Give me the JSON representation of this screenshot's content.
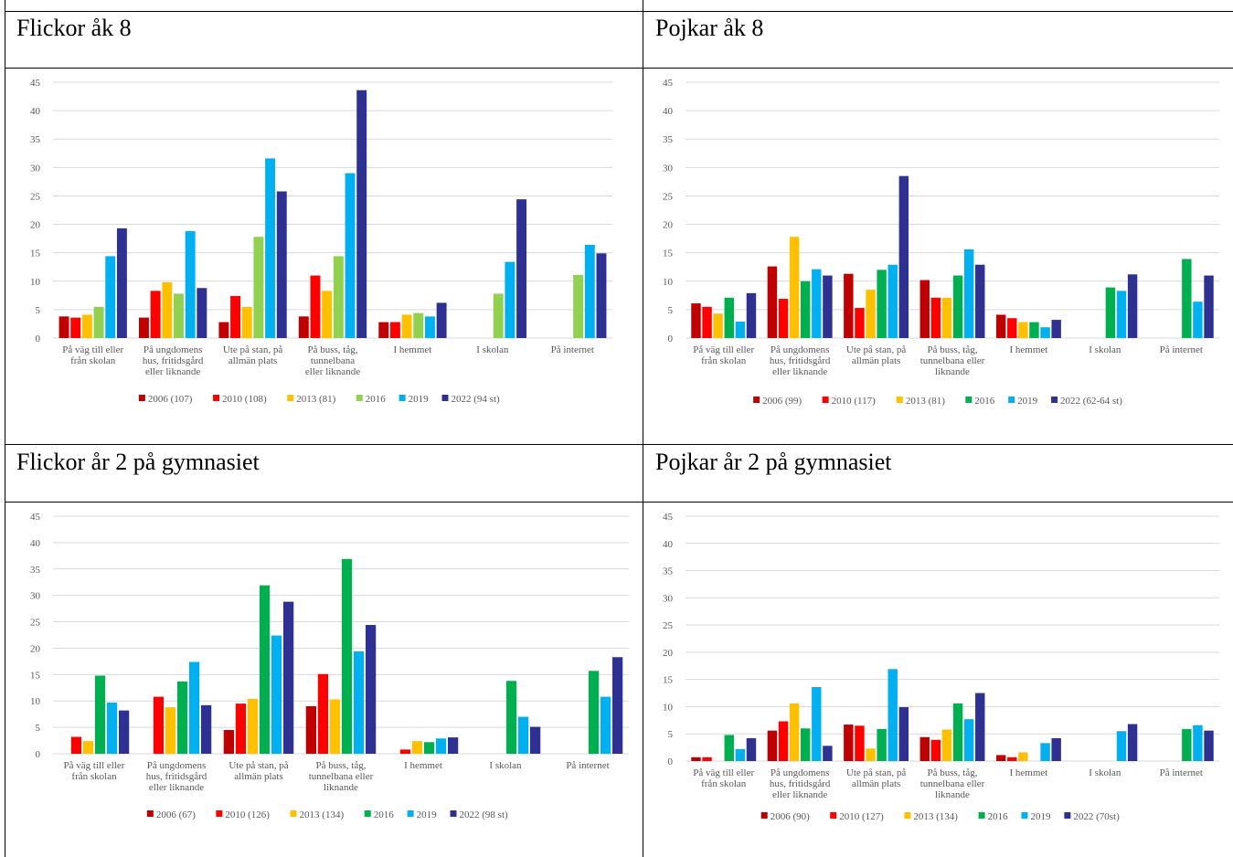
{
  "colors": {
    "2006": "#c00000",
    "2010": "#ff0000",
    "2013": "#ffc000",
    "2016_light": "#92d050",
    "2016": "#00b050",
    "2019": "#00b0f0",
    "2022": "#2e3192",
    "grid": "#d9d9d9",
    "axis_text": "#595959"
  },
  "panels": [
    {
      "title": "Flickor åk 8"
    },
    {
      "title": "Pojkar åk 8"
    },
    {
      "title": "Flickor år 2 på gymnasiet"
    },
    {
      "title": "Pojkar år 2 på gymnasiet"
    }
  ],
  "chart_data": [
    {
      "type": "bar",
      "ylim": [
        0,
        45
      ],
      "yticks": [
        0,
        5,
        10,
        15,
        20,
        25,
        30,
        35,
        40,
        45
      ],
      "grid": true,
      "legend": "bottom",
      "categories": [
        [
          "På väg till eller",
          "från skolan"
        ],
        [
          "På ungdomens",
          "hus, fritidsgård",
          "eller liknande"
        ],
        [
          "Ute på stan, på",
          "allmän plats"
        ],
        [
          "På buss, tåg,",
          "tunnelbana",
          "eller liknande"
        ],
        [
          "I hemmet"
        ],
        [
          "I skolan"
        ],
        [
          "På internet"
        ]
      ],
      "series": [
        {
          "name": "2006 (107)",
          "color": "#c00000",
          "values": [
            3.8,
            3.6,
            2.8,
            3.8,
            2.8,
            null,
            null
          ]
        },
        {
          "name": "2010 (108)",
          "color": "#ff0000",
          "values": [
            3.6,
            8.3,
            7.4,
            11.0,
            2.8,
            null,
            null
          ]
        },
        {
          "name": "2013 (81)",
          "color": "#ffc000",
          "values": [
            4.1,
            9.8,
            5.5,
            8.3,
            4.1,
            null,
            null
          ]
        },
        {
          "name": "2016",
          "color": "#92d050",
          "values": [
            5.5,
            7.8,
            17.8,
            14.4,
            4.4,
            7.8,
            11.1
          ]
        },
        {
          "name": "2019",
          "color": "#00b0f0",
          "values": [
            14.4,
            18.8,
            31.6,
            29.0,
            3.8,
            13.4,
            16.4
          ]
        },
        {
          "name": "2022 (94 st)",
          "color": "#2e3192",
          "values": [
            19.3,
            8.8,
            25.8,
            43.6,
            6.2,
            24.4,
            14.9
          ]
        }
      ]
    },
    {
      "type": "bar",
      "ylim": [
        0,
        45
      ],
      "yticks": [
        0,
        5,
        10,
        15,
        20,
        25,
        30,
        35,
        40,
        45
      ],
      "grid": true,
      "legend": "bottom",
      "categories": [
        [
          "På väg till eller",
          "från skolan"
        ],
        [
          "På ungdomens",
          "hus, fritidsgård",
          "eller liknande"
        ],
        [
          "Ute på stan, på",
          "allmän plats"
        ],
        [
          "På buss, tåg,",
          "tunnelbana eller",
          "liknande"
        ],
        [
          "I hemmet"
        ],
        [
          "I skolan"
        ],
        [
          "På internet"
        ]
      ],
      "series": [
        {
          "name": "2006 (99)",
          "color": "#c00000",
          "values": [
            6.1,
            12.6,
            11.3,
            10.2,
            4.1,
            null,
            null
          ]
        },
        {
          "name": "2010 (117)",
          "color": "#ff0000",
          "values": [
            5.5,
            6.9,
            5.3,
            7.1,
            3.5,
            null,
            null
          ]
        },
        {
          "name": "2013 (81)",
          "color": "#ffc000",
          "values": [
            4.3,
            17.8,
            8.5,
            7.1,
            2.8,
            null,
            null
          ]
        },
        {
          "name": "2016",
          "color": "#00b050",
          "values": [
            7.1,
            10.0,
            12.0,
            11.0,
            2.8,
            8.9,
            13.9
          ]
        },
        {
          "name": "2019",
          "color": "#00b0f0",
          "values": [
            2.9,
            12.1,
            12.9,
            15.6,
            1.9,
            8.3,
            6.4
          ]
        },
        {
          "name": "2022 (62-64 st)",
          "color": "#2e3192",
          "values": [
            7.9,
            11.0,
            28.5,
            12.9,
            3.2,
            11.2,
            11.0
          ]
        }
      ]
    },
    {
      "type": "bar",
      "ylim": [
        0,
        45
      ],
      "yticks": [
        0,
        5,
        10,
        15,
        20,
        25,
        30,
        35,
        40,
        45
      ],
      "grid": true,
      "legend": "bottom",
      "categories": [
        [
          "På väg till eller",
          "från skolan"
        ],
        [
          "På ungdomens",
          "hus, fritidsgård",
          "eller liknande"
        ],
        [
          "Ute på stan, på",
          "allmän plats"
        ],
        [
          "På buss, tåg,",
          "tunnelbana eller",
          "liknande"
        ],
        [
          "I hemmet"
        ],
        [
          "I skolan"
        ],
        [
          "På internet"
        ]
      ],
      "series": [
        {
          "name": "2006 (67)",
          "color": "#c00000",
          "values": [
            null,
            null,
            4.5,
            9.0,
            null,
            null,
            null
          ]
        },
        {
          "name": "2010 (126)",
          "color": "#ff0000",
          "values": [
            3.2,
            10.8,
            9.5,
            15.1,
            0.8,
            null,
            null
          ]
        },
        {
          "name": "2013 (134)",
          "color": "#ffc000",
          "values": [
            2.4,
            8.8,
            10.4,
            10.3,
            2.4,
            null,
            null
          ]
        },
        {
          "name": "2016",
          "color": "#00b050",
          "values": [
            14.8,
            13.7,
            31.9,
            36.9,
            2.2,
            13.8,
            15.7
          ]
        },
        {
          "name": "2019",
          "color": "#00b0f0",
          "values": [
            9.7,
            17.4,
            22.4,
            19.4,
            2.9,
            7.0,
            10.8
          ]
        },
        {
          "name": "2022 (98 st)",
          "color": "#2e3192",
          "values": [
            8.2,
            9.2,
            28.8,
            24.4,
            3.1,
            5.1,
            18.3
          ]
        }
      ]
    },
    {
      "type": "bar",
      "ylim": [
        0,
        45
      ],
      "yticks": [
        0,
        5,
        10,
        15,
        20,
        25,
        30,
        35,
        40,
        45
      ],
      "grid": true,
      "legend": "bottom",
      "categories": [
        [
          "På väg till eller",
          "från skolan"
        ],
        [
          "På ungdomens",
          "hus, fritidsgård",
          "eller liknande"
        ],
        [
          "Ute på stan, på",
          "allmän plats"
        ],
        [
          "På buss, tåg,",
          "tunnelbana eller",
          "liknande"
        ],
        [
          "I hemmet"
        ],
        [
          "I skolan"
        ],
        [
          "På internet"
        ]
      ],
      "series": [
        {
          "name": "2006 (90)",
          "color": "#c00000",
          "values": [
            0.7,
            5.6,
            6.7,
            4.4,
            1.1,
            null,
            null
          ]
        },
        {
          "name": "2010 (127)",
          "color": "#ff0000",
          "values": [
            0.7,
            7.3,
            6.5,
            3.9,
            0.7,
            null,
            null
          ]
        },
        {
          "name": "2013 (134)",
          "color": "#ffc000",
          "values": [
            null,
            10.6,
            2.3,
            5.8,
            1.6,
            null,
            null
          ]
        },
        {
          "name": "2016",
          "color": "#00b050",
          "values": [
            4.8,
            6.0,
            5.9,
            10.6,
            null,
            null,
            5.9
          ]
        },
        {
          "name": "2019",
          "color": "#00b0f0",
          "values": [
            2.2,
            13.6,
            16.9,
            7.7,
            3.3,
            5.5,
            6.6
          ]
        },
        {
          "name": "2022 (70st)",
          "color": "#2e3192",
          "values": [
            4.2,
            2.8,
            9.9,
            12.5,
            4.2,
            6.8,
            5.6
          ]
        }
      ]
    }
  ]
}
